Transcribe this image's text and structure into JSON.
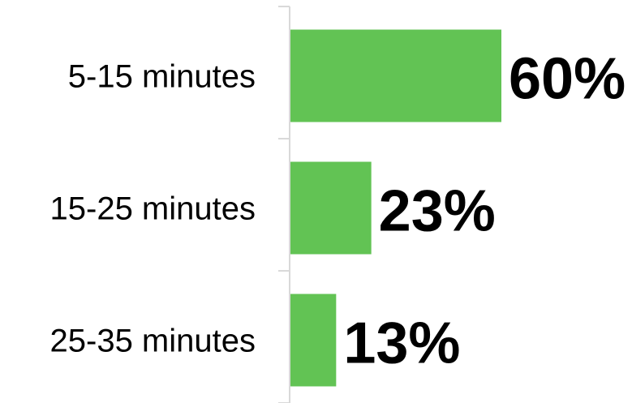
{
  "chart_data": {
    "type": "bar",
    "orientation": "horizontal",
    "categories": [
      "5-15 minutes",
      "15-25 minutes",
      "25-35 minutes"
    ],
    "values": [
      60,
      23,
      13
    ],
    "value_labels": [
      "60%",
      "23%",
      "13%"
    ],
    "unit": "%",
    "title": "",
    "xlabel": "",
    "ylabel": "",
    "xlim": [
      0,
      60
    ],
    "grid": false,
    "legend": "none",
    "bar_color": "#62c354",
    "axis_color": "#d9d9d9",
    "text_color": "#000000"
  }
}
